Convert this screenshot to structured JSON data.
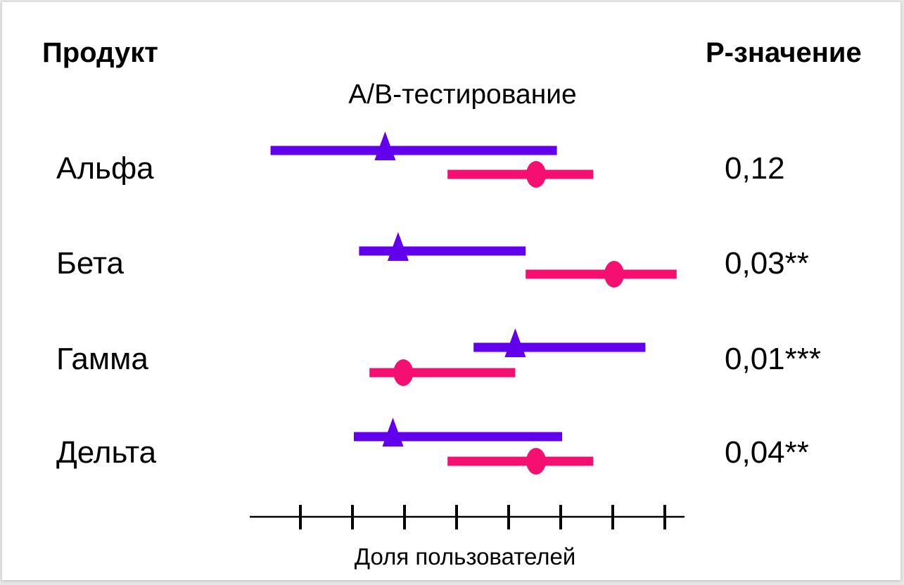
{
  "chart_data": {
    "type": "forest",
    "title": "A/B-тестирование",
    "headers": {
      "left": "Продукт",
      "right": "P-значение"
    },
    "xlabel": "Доля пользователей",
    "xlim": [
      0,
      8
    ],
    "x_ticks": [
      1,
      2,
      3,
      4,
      5,
      6,
      7,
      8
    ],
    "tick_labels_shown": false,
    "colors": {
      "series_a": "#6200ee",
      "series_b": "#f50f70"
    },
    "markers": {
      "series_a": "triangle",
      "series_b": "circle"
    },
    "rows": [
      {
        "label": "Альфа",
        "p_value": "0,12",
        "a": {
          "low": 0.4,
          "point": 2.6,
          "high": 5.9
        },
        "b": {
          "low": 3.8,
          "point": 5.5,
          "high": 6.6
        }
      },
      {
        "label": "Бета",
        "p_value": "0,03**",
        "a": {
          "low": 2.1,
          "point": 2.85,
          "high": 5.3
        },
        "b": {
          "low": 5.3,
          "point": 7.0,
          "high": 8.2
        }
      },
      {
        "label": "Гамма",
        "p_value": "0,01***",
        "a": {
          "low": 4.3,
          "point": 5.1,
          "high": 7.6
        },
        "b": {
          "low": 2.3,
          "point": 2.95,
          "high": 5.1
        }
      },
      {
        "label": "Дельта",
        "p_value": "0,04**",
        "a": {
          "low": 2.0,
          "point": 2.75,
          "high": 6.0
        },
        "b": {
          "low": 3.8,
          "point": 5.5,
          "high": 6.6
        }
      }
    ]
  }
}
